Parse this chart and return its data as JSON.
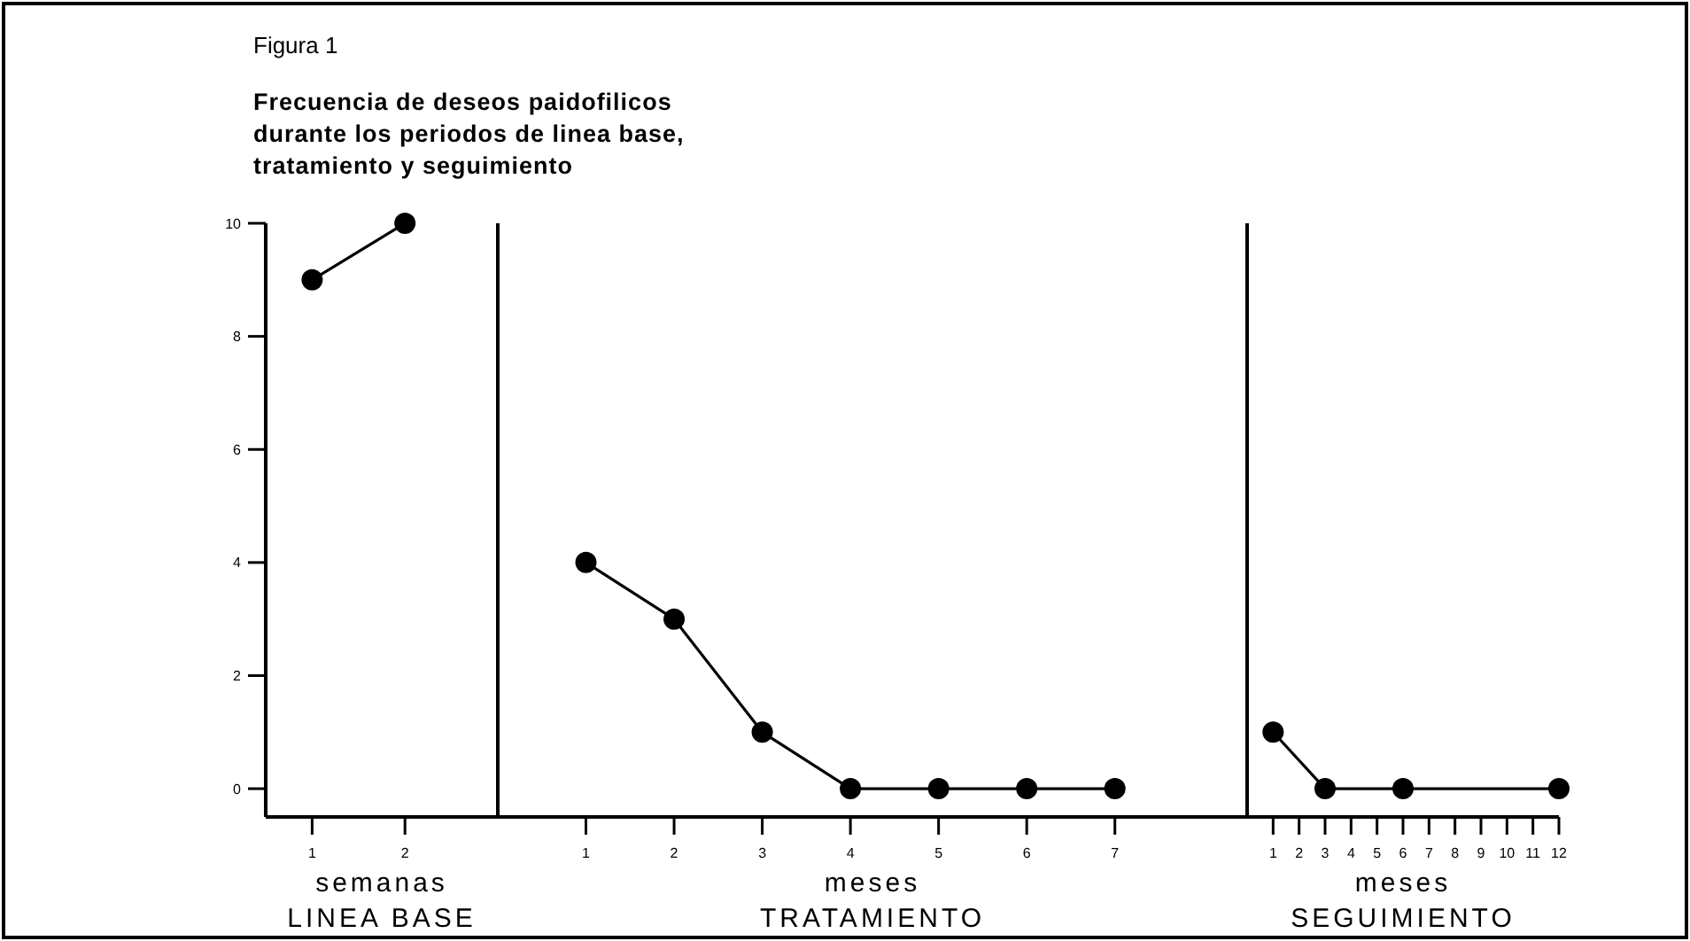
{
  "chart_data": [
    {
      "type": "line",
      "subtitle": "Figura 1",
      "title": "Frecuencia de deseos paidofilicos durante los periodos de linea base, tratamiento y seguimiento",
      "xlabel": "semanas",
      "annotations": [
        "LINEA BASE"
      ],
      "x": [
        1,
        2
      ],
      "xlim": [
        0.5,
        3
      ],
      "xticks": [
        1,
        2
      ],
      "ylim": [
        -0.5,
        10
      ],
      "yticks": [
        0,
        2,
        4,
        6,
        8,
        10
      ],
      "marker": "circle",
      "line_style": "solid",
      "series": [
        {
          "color": "#000000",
          "values": [
            9,
            10
          ]
        }
      ]
    },
    {
      "type": "line",
      "xlabel": "meses",
      "annotations": [
        "TRATAMIENTO"
      ],
      "x": [
        1,
        2,
        3,
        4,
        5,
        6,
        7
      ],
      "xlim": [
        0,
        8.5
      ],
      "xticks": [
        1,
        2,
        3,
        4,
        5,
        6,
        7
      ],
      "ylim": [
        -0.5,
        10
      ],
      "tick_labels": "x",
      "marker": "circle",
      "line_style": "solid",
      "series": [
        {
          "color": "#000000",
          "values": [
            4,
            3,
            1,
            0,
            0,
            0,
            0
          ]
        }
      ]
    },
    {
      "type": "line",
      "xlabel": "meses",
      "annotations": [
        "SEGUIMIENTO"
      ],
      "x": [
        1,
        3,
        6,
        12
      ],
      "xlim": [
        0,
        12
      ],
      "xticks": [
        1,
        2,
        3,
        4,
        5,
        6,
        7,
        8,
        9,
        10,
        11,
        12
      ],
      "ylim": [
        -0.5,
        10
      ],
      "tick_labels": "x",
      "marker": "circle",
      "line_style": "solid",
      "series": [
        {
          "color": "#000000",
          "values": [
            1,
            0,
            0,
            0
          ]
        }
      ]
    }
  ]
}
